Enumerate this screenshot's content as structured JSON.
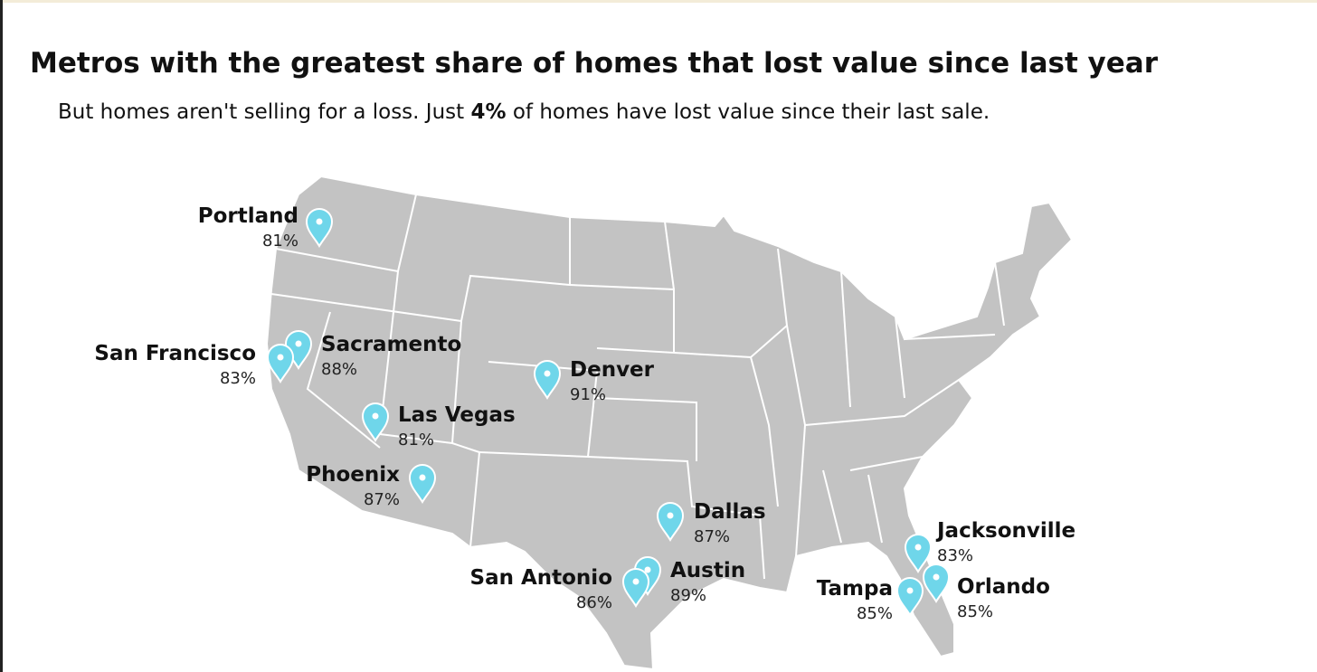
{
  "header": {
    "title": "Metros with the greatest share of homes that lost value since last year",
    "subtitle": [
      "But homes aren't selling for a loss. Just ",
      "4%",
      " of homes have lost value since their last sale."
    ]
  },
  "metros": [
    {
      "name": "Portland",
      "share": "81%"
    },
    {
      "name": "Sacramento",
      "share": "88%"
    },
    {
      "name": "San Francisco",
      "share": "83%"
    },
    {
      "name": "Las Vegas",
      "share": "81%"
    },
    {
      "name": "Phoenix",
      "share": "87%"
    },
    {
      "name": "Denver",
      "share": "91%"
    },
    {
      "name": "Dallas",
      "share": "87%"
    },
    {
      "name": "Austin",
      "share": "89%"
    },
    {
      "name": "San Antonio",
      "share": "86%"
    },
    {
      "name": "Jacksonville",
      "share": "83%"
    },
    {
      "name": "Orlando",
      "share": "85%"
    },
    {
      "name": "Tampa",
      "share": "85%"
    }
  ]
}
